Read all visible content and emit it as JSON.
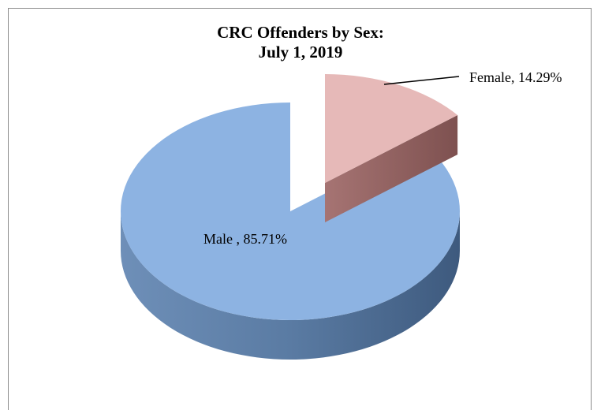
{
  "chart_data": {
    "type": "pie",
    "title_line1": "CRC Offenders by Sex:",
    "title_line2": "July 1, 2019",
    "slices": [
      {
        "name": "Male",
        "value": 85.71,
        "label": "Male , 85.71%",
        "color": "#8DB3E2",
        "side_color": "#4F6E93"
      },
      {
        "name": "Female",
        "value": 14.29,
        "label": "Female, 14.29%",
        "color": "#E6B9B8",
        "side_color": "#8C5E5D"
      }
    ],
    "legend": "none"
  }
}
